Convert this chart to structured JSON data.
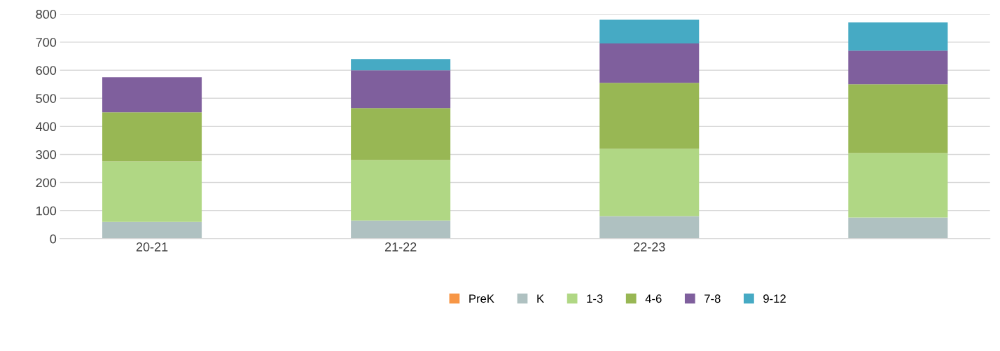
{
  "chart_data": {
    "type": "bar",
    "stacked": true,
    "categories": [
      "20-21",
      "21-22",
      "22-23",
      null
    ],
    "series": [
      {
        "name": "PreK",
        "color": "#f79646",
        "values": [
          0,
          0,
          0,
          0
        ]
      },
      {
        "name": "K",
        "color": "#afc1c1",
        "values": [
          60,
          65,
          80,
          75
        ]
      },
      {
        "name": "1-3",
        "color": "#b0d784",
        "values": [
          215,
          215,
          240,
          230
        ]
      },
      {
        "name": "4-6",
        "color": "#98b754",
        "values": [
          175,
          185,
          235,
          245
        ]
      },
      {
        "name": "7-8",
        "color": "#7f5f9d",
        "values": [
          125,
          135,
          140,
          120
        ]
      },
      {
        "name": "9-12",
        "color": "#46aac4",
        "values": [
          0,
          40,
          85,
          100
        ]
      }
    ],
    "ylim": [
      0,
      800
    ],
    "yticks": [
      0,
      100,
      200,
      300,
      400,
      500,
      600,
      700,
      800
    ],
    "grid": "y",
    "legend": "bottom"
  }
}
